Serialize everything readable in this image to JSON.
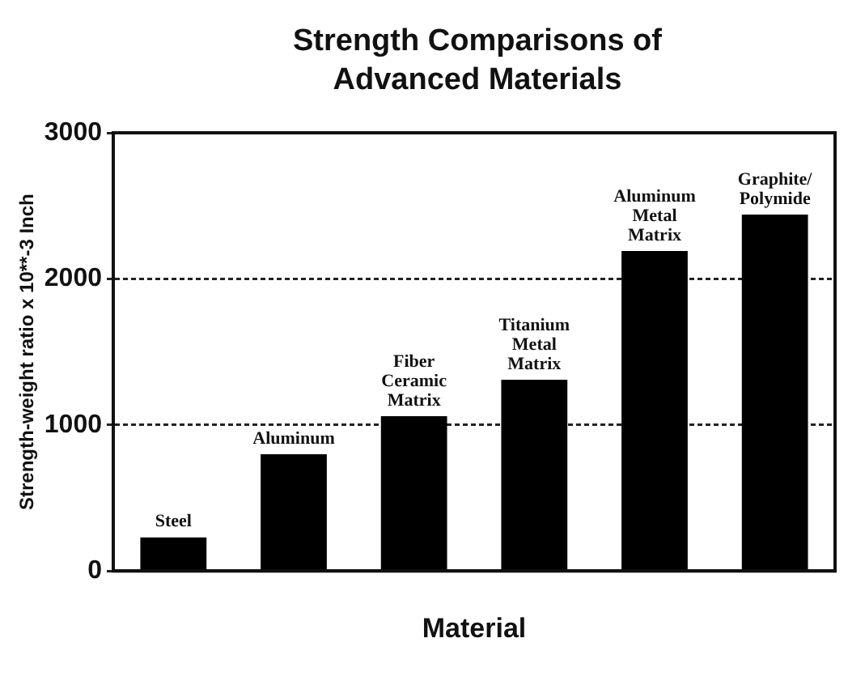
{
  "chart_data": {
    "type": "bar",
    "title": "Strength Comparisons of Advanced Materials",
    "xlabel": "Material",
    "ylabel": "Strength-weight ratio x 10**-3 Inch",
    "categories": [
      "Steel",
      "Aluminum",
      "Fiber Ceramic Matrix",
      "Titanium Metal Matrix",
      "Aluminum Metal Matrix",
      "Graphite/Polymide"
    ],
    "values": [
      230,
      800,
      1060,
      1310,
      2190,
      2440
    ],
    "color": "#000000",
    "ylim": [
      0,
      3000
    ],
    "yticks": [
      0,
      1000,
      2000,
      3000
    ],
    "grid": "y",
    "line_style": "dashed",
    "tick_labels": "y"
  }
}
